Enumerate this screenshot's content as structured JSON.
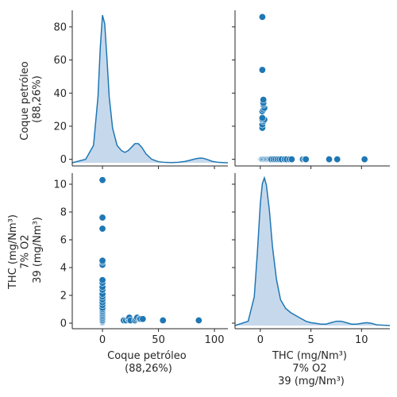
{
  "chart_data": {
    "type": "pairplot",
    "variables": [
      {
        "label_lines": [
          "Coque petróleo",
          "(88,26%)"
        ]
      },
      {
        "label_lines": [
          "THC (mg/Nm³)",
          "7% O2",
          "39 (mg/Nm³)"
        ]
      }
    ],
    "colors": {
      "points": "#1f77b4",
      "kde_line": "#1f77b4",
      "kde_fill": "#c6d9ec",
      "axes": "#262626"
    },
    "axes": {
      "coque": {
        "lim": [
          -27,
          112
        ],
        "ticks": [
          0,
          50,
          100
        ],
        "tick_labels": [
          "0",
          "50",
          "100"
        ]
      },
      "coque_y": {
        "lim": [
          -4,
          90
        ],
        "ticks": [
          0,
          20,
          40,
          60,
          80
        ],
        "tick_labels": [
          "0",
          "20",
          "40",
          "60",
          "80"
        ]
      },
      "thc": {
        "lim": [
          -2.5,
          12.8
        ],
        "ticks": [
          0,
          5,
          10
        ],
        "tick_labels": [
          "0",
          "5",
          "10"
        ]
      },
      "thc_y": {
        "lim": [
          -0.4,
          10.8
        ],
        "ticks": [
          0,
          2,
          4,
          6,
          8,
          10
        ],
        "tick_labels": [
          "0",
          "2",
          "4",
          "6",
          "8",
          "10"
        ]
      }
    },
    "diag_coque_kde": {
      "x": [
        -27,
        -15,
        -8,
        -4,
        -2,
        0,
        2,
        4,
        6,
        9,
        13,
        17,
        20,
        23,
        26,
        29,
        32,
        35,
        39,
        44,
        50,
        56,
        62,
        68,
        74,
        79,
        83,
        87,
        90,
        94,
        98,
        104,
        112
      ],
      "density": [
        0,
        2,
        10,
        38,
        66,
        85,
        80,
        60,
        38,
        20,
        10,
        7,
        6,
        7,
        9,
        11,
        11,
        9,
        5,
        2,
        0.6,
        0.2,
        0.1,
        0.3,
        0.8,
        1.6,
        2.3,
        2.7,
        2.6,
        1.8,
        0.8,
        0.2,
        0
      ]
    },
    "diag_thc_kde": {
      "x": [
        -2.5,
        -1.2,
        -0.6,
        -0.3,
        0,
        0.2,
        0.4,
        0.6,
        0.9,
        1.2,
        1.6,
        2.0,
        2.5,
        3.0,
        3.5,
        4.0,
        4.5,
        5.0,
        5.5,
        6.0,
        6.5,
        7.0,
        7.5,
        8.0,
        8.5,
        9.0,
        9.5,
        10.0,
        10.5,
        11.0,
        11.5,
        12.8
      ],
      "density": [
        0,
        0.3,
        2.0,
        5.0,
        8.5,
        9.9,
        10.3,
        9.8,
        8.0,
        5.5,
        3.2,
        1.8,
        1.2,
        0.9,
        0.7,
        0.5,
        0.3,
        0.2,
        0.15,
        0.1,
        0.1,
        0.2,
        0.3,
        0.3,
        0.2,
        0.1,
        0.1,
        0.15,
        0.2,
        0.15,
        0.05,
        0
      ]
    },
    "pairs": [
      [
        0,
        0.05
      ],
      [
        0,
        0.1
      ],
      [
        0,
        0.15
      ],
      [
        0,
        0.2
      ],
      [
        0,
        0.3
      ],
      [
        0,
        0.4
      ],
      [
        0,
        0.5
      ],
      [
        0,
        0.6
      ],
      [
        0,
        0.7
      ],
      [
        0,
        0.8
      ],
      [
        0,
        0.9
      ],
      [
        0,
        1.0
      ],
      [
        0,
        1.1
      ],
      [
        0,
        1.3
      ],
      [
        0,
        1.5
      ],
      [
        0,
        1.7
      ],
      [
        0,
        1.9
      ],
      [
        0,
        2.1
      ],
      [
        0,
        2.4
      ],
      [
        0,
        2.6
      ],
      [
        0,
        2.9
      ],
      [
        0,
        3.1
      ],
      [
        0,
        4.2
      ],
      [
        0,
        4.4
      ],
      [
        0,
        4.5
      ],
      [
        0,
        6.8
      ],
      [
        0,
        7.6
      ],
      [
        0,
        10.3
      ],
      [
        19,
        0.2
      ],
      [
        21,
        0.2
      ],
      [
        23,
        0.3
      ],
      [
        24,
        0.2
      ],
      [
        24,
        0.4
      ],
      [
        25,
        0.2
      ],
      [
        29,
        0.2
      ],
      [
        30,
        0.3
      ],
      [
        31,
        0.4
      ],
      [
        33,
        0.3
      ],
      [
        34,
        0.3
      ],
      [
        36,
        0.3
      ],
      [
        54,
        0.2
      ],
      [
        86,
        0.2
      ]
    ]
  }
}
